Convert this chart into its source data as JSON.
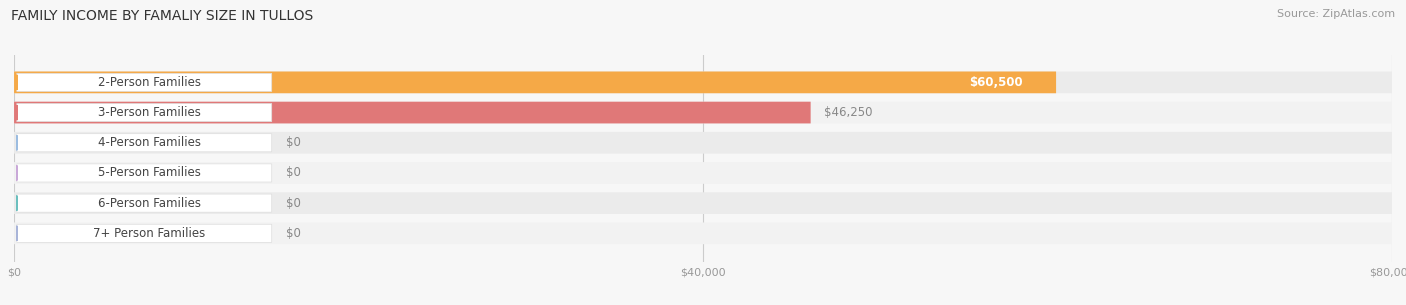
{
  "title": "FAMILY INCOME BY FAMALIY SIZE IN TULLOS",
  "source": "Source: ZipAtlas.com",
  "categories": [
    "2-Person Families",
    "3-Person Families",
    "4-Person Families",
    "5-Person Families",
    "6-Person Families",
    "7+ Person Families"
  ],
  "values": [
    60500,
    46250,
    0,
    0,
    0,
    0
  ],
  "bar_colors": [
    "#F5A947",
    "#E07878",
    "#9BBCE0",
    "#C9A8D8",
    "#6BBFBE",
    "#A8B4D8"
  ],
  "value_labels": [
    "$60,500",
    "$46,250",
    "$0",
    "$0",
    "$0",
    "$0"
  ],
  "xlim": [
    0,
    80000
  ],
  "xticks": [
    0,
    40000,
    80000
  ],
  "xtick_labels": [
    "$0",
    "$40,000",
    "$80,000"
  ],
  "background_color": "#f7f7f7",
  "bar_bg_color_odd": "#ebebeb",
  "bar_bg_color_even": "#f2f2f2",
  "title_fontsize": 10,
  "source_fontsize": 8,
  "label_fontsize": 8.5,
  "value_fontsize": 8.5
}
